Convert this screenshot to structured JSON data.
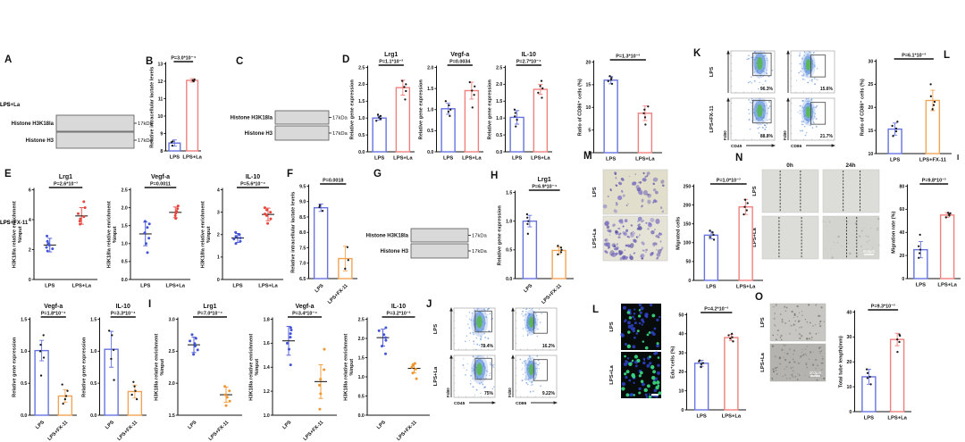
{
  "figure": {
    "panel_labels": [
      {
        "id": "A",
        "label": "A"
      },
      {
        "id": "B",
        "label": "B"
      },
      {
        "id": "C",
        "label": "C"
      },
      {
        "id": "D",
        "label": "D"
      },
      {
        "id": "E",
        "label": "E"
      },
      {
        "id": "F",
        "label": "F"
      },
      {
        "id": "G",
        "label": "G"
      },
      {
        "id": "H",
        "label": "H"
      },
      {
        "id": "I",
        "label": "I"
      },
      {
        "id": "J",
        "label": "J"
      },
      {
        "id": "K",
        "label": "K"
      },
      {
        "id": "L2",
        "label": "L"
      },
      {
        "id": "M",
        "label": "M"
      },
      {
        "id": "N",
        "label": "N"
      },
      {
        "id": "L",
        "label": "L"
      },
      {
        "id": "O",
        "label": "O"
      },
      {
        "id": "Imark",
        "label": "I"
      }
    ]
  },
  "colors": {
    "blue": "#6673e0",
    "red": "#f0807e",
    "orange": "#f2a455",
    "dot_blue": "#4353d6",
    "dot_red": "#e8443b",
    "dot_orange": "#f0942d",
    "bar_dot": "#1a1a1a",
    "flow_blue": "#4e86d6",
    "flow_green": "#58b657"
  },
  "blots": [
    {
      "id": "A",
      "lane_labels": [],
      "rows": [
        {
          "label": "Histone H3K18la",
          "marker": "17kDa",
          "bands": [
            0.5,
            0.75,
            0.95,
            0.85
          ]
        },
        {
          "label": "Histone H3",
          "marker": "17kDa",
          "bands": [
            0.95,
            0.9,
            0.92,
            0.95
          ]
        }
      ]
    },
    {
      "id": "C",
      "lane_labels": [
        "LPS",
        "LPS+La"
      ],
      "rows": [
        {
          "label": "Histone H3K18la",
          "marker": "17kDa",
          "bands": [
            0.55,
            0.97
          ]
        },
        {
          "label": "Histone H3",
          "marker": "17kDa",
          "bands": [
            0.92,
            0.9
          ]
        }
      ]
    },
    {
      "id": "G",
      "lane_labels": [
        "LPS",
        "LPS+FX-11"
      ],
      "rows": [
        {
          "label": "Histone H3K18la",
          "marker": "17kDa",
          "bands": [
            0.97,
            0.68
          ]
        },
        {
          "label": "Histone H3",
          "marker": "17kDa",
          "bands": [
            0.75,
            0.95
          ]
        }
      ]
    }
  ],
  "flow_panels": [
    {
      "id": "K",
      "row_labels": [
        "LPS",
        "LPS+FX-11"
      ],
      "ylabel": "F4/80",
      "cols": [
        {
          "xlabel": "CD45",
          "percentages": [
            "96.3%",
            "88.8%"
          ]
        },
        {
          "xlabel": "CD86",
          "percentages": [
            "15.6%",
            "21.7%"
          ]
        }
      ]
    },
    {
      "id": "J",
      "row_labels": [
        "LPS",
        "LPS+La"
      ],
      "ylabel": "F4/80",
      "cols": [
        {
          "xlabel": "CD45",
          "percentages": [
            "79.4%",
            "75%"
          ]
        },
        {
          "xlabel": "CD86",
          "percentages": [
            "16.2%",
            "9.22%"
          ]
        }
      ]
    }
  ],
  "images": {
    "M": {
      "type": "transwell",
      "row_labels": [
        "LPS",
        "LPS+La"
      ]
    },
    "N": {
      "type": "wound",
      "row_labels": [
        "LPS",
        "LPS+La"
      ],
      "col_labels": [
        "0h",
        "24h"
      ],
      "scale_bar": "500μm"
    },
    "L": {
      "type": "edu",
      "row_labels": [
        "LPS",
        "LPS+La"
      ]
    },
    "O": {
      "type": "tube",
      "row_labels": [
        "LPS",
        "LPS+La"
      ],
      "scale_bar": "200μm"
    }
  },
  "chart_data": [
    {
      "id": "B",
      "type": "bar",
      "title": "",
      "p": "P=3.0*10⁻⁴",
      "ylabel": [
        "Relative intracellular lactate levels"
      ],
      "ymin": 8,
      "ymax": 13,
      "ystep": 1,
      "categories": [
        "LPS",
        "LPS+La"
      ],
      "colors": [
        "blue",
        "red"
      ],
      "values": [
        8.45,
        12.05
      ],
      "errors": [
        0.18,
        0.1
      ],
      "points": [
        [
          8.3,
          8.5,
          8.55
        ],
        [
          12.0,
          12.05,
          12.1
        ]
      ],
      "x_rotated": false
    },
    {
      "id": "D1",
      "type": "bar",
      "title": "Lrg1",
      "p": "P=1.1*10⁻³",
      "ylabel": [
        "Relative gene expression"
      ],
      "ymin": 0,
      "ymax": 2.5,
      "ystep": 0.5,
      "categories": [
        "LPS",
        "LPS+La"
      ],
      "colors": [
        "blue",
        "red"
      ],
      "values": [
        1.0,
        1.9
      ],
      "errors": [
        0.06,
        0.22
      ],
      "points": [
        [
          0.92,
          0.98,
          1.02,
          1.06,
          1.1
        ],
        [
          1.55,
          1.8,
          1.92,
          2.0,
          2.1
        ]
      ],
      "x_rotated": false
    },
    {
      "id": "D2",
      "type": "bar",
      "title": "Vegf-a",
      "p": "P=0.0034",
      "ylabel": [
        "Relative gene expression"
      ],
      "ymin": 0,
      "ymax": 2.0,
      "ystep": 0.5,
      "categories": [
        "LPS",
        "LPS+La"
      ],
      "colors": [
        "blue",
        "red"
      ],
      "values": [
        1.02,
        1.45
      ],
      "errors": [
        0.13,
        0.2
      ],
      "points": [
        [
          0.85,
          0.95,
          1.0,
          1.1,
          1.2
        ],
        [
          1.05,
          1.35,
          1.45,
          1.55,
          1.65
        ]
      ],
      "x_rotated": false
    },
    {
      "id": "D3",
      "type": "bar",
      "title": "IL-10",
      "p": "P=2.7*10⁻⁴",
      "ylabel": [
        "Relative gene expression"
      ],
      "ymin": 0,
      "ymax": 2.5,
      "ystep": 0.5,
      "categories": [
        "LPS",
        "LPS+La"
      ],
      "colors": [
        "blue",
        "red"
      ],
      "values": [
        1.02,
        1.85
      ],
      "errors": [
        0.2,
        0.15
      ],
      "points": [
        [
          0.75,
          0.95,
          1.05,
          1.15,
          1.25
        ],
        [
          1.6,
          1.75,
          1.88,
          1.95,
          2.1
        ]
      ],
      "x_rotated": false
    },
    {
      "id": "CD86La",
      "type": "bar",
      "title": "",
      "p": "P=1.3*10⁻³",
      "ylabel": [
        "Ratio of CD86⁺ cells (%)"
      ],
      "ymin": 0,
      "ymax": 20,
      "ystep": 5,
      "categories": [
        "LPS",
        "LPS+La"
      ],
      "colors": [
        "blue",
        "red"
      ],
      "values": [
        16,
        8.7
      ],
      "errors": [
        0.8,
        1.6
      ],
      "points": [
        [
          15.2,
          15.8,
          16.1,
          16.5,
          16.9
        ],
        [
          6.2,
          7.8,
          8.7,
          9.5,
          10.2
        ]
      ],
      "x_rotated": false
    },
    {
      "id": "Kbar",
      "type": "bar",
      "title": "",
      "p": "P=6.1*10⁻³",
      "ylabel": [
        "Ratio of CD86⁺ cells (%)"
      ],
      "ymin": 10,
      "ymax": 30,
      "ystep": 5,
      "categories": [
        "LPS",
        "LPS+FX-11"
      ],
      "colors": [
        "blue",
        "orange"
      ],
      "values": [
        15.3,
        21.5
      ],
      "errors": [
        1.3,
        2.2
      ],
      "points": [
        [
          13.8,
          14.8,
          15.4,
          16.0,
          16.9
        ],
        [
          19.6,
          20.5,
          21.2,
          22.4,
          25.0
        ]
      ],
      "x_rotated": false
    },
    {
      "id": "E1",
      "type": "dot",
      "title": "Lrg1",
      "p": "P=2.6*10⁻³",
      "ylabel": [
        "H3K18la relative enrichment",
        "%input"
      ],
      "ymin": 0,
      "ymax": 6,
      "ystep": 2,
      "categories": [
        "LPS",
        "LPS+La"
      ],
      "colors": [
        "dot_blue",
        "dot_red"
      ],
      "values": [
        2.3,
        4.25
      ],
      "errors": [
        0.45,
        0.55
      ],
      "points": [
        [
          1.9,
          2.05,
          2.15,
          2.3,
          2.4,
          2.55,
          2.9
        ],
        [
          3.7,
          3.9,
          4.05,
          4.2,
          4.4,
          4.8,
          5.2
        ]
      ],
      "x_rotated": false
    },
    {
      "id": "E2",
      "type": "dot",
      "title": "Vegf-a",
      "p": "P=0.0011",
      "ylabel": [
        "H3K18la relative enrichment",
        "%input"
      ],
      "ymin": 0,
      "ymax": 2.5,
      "ystep": 0.5,
      "categories": [
        "LPS",
        "LPS+La"
      ],
      "colors": [
        "dot_blue",
        "dot_red"
      ],
      "values": [
        1.27,
        1.87
      ],
      "errors": [
        0.33,
        0.15
      ],
      "points": [
        [
          0.75,
          1.0,
          1.15,
          1.3,
          1.45,
          1.55,
          1.62
        ],
        [
          1.7,
          1.78,
          1.85,
          1.9,
          1.97,
          2.05
        ]
      ],
      "x_rotated": false
    },
    {
      "id": "E3",
      "type": "dot",
      "title": "IL-10",
      "p": "P=5.6*10⁻⁴",
      "ylabel": [
        "H3K18la relative enrichment",
        "%input"
      ],
      "ymin": 0,
      "ymax": 4,
      "ystep": 1,
      "categories": [
        "LPS",
        "LPS+La"
      ],
      "colors": [
        "dot_blue",
        "dot_red"
      ],
      "values": [
        1.85,
        2.9
      ],
      "errors": [
        0.2,
        0.28
      ],
      "points": [
        [
          1.6,
          1.7,
          1.8,
          1.85,
          1.92,
          2.0,
          2.1
        ],
        [
          2.5,
          2.7,
          2.85,
          2.92,
          3.0,
          3.1,
          3.2
        ]
      ],
      "x_rotated": false
    },
    {
      "id": "F",
      "type": "bar",
      "title": "",
      "p": "P=0.0018",
      "ylabel": [
        "Relative intracellular lactate levels"
      ],
      "ymin": 6.5,
      "ymax": 9.5,
      "ystep": 0.5,
      "categories": [
        "LPS",
        "LPS+FX-11"
      ],
      "colors": [
        "blue",
        "orange"
      ],
      "values": [
        8.8,
        7.15
      ],
      "errors": [
        0.12,
        0.4
      ],
      "points": [
        [
          8.7,
          8.82,
          8.88
        ],
        [
          6.82,
          7.1,
          7.52
        ]
      ],
      "x_rotated": true
    },
    {
      "id": "H",
      "type": "bar",
      "title": "Lrg1",
      "p": "P=6.9*10⁻⁴",
      "ylabel": [
        "Relative gene expression"
      ],
      "ymin": 0,
      "ymax": 1.5,
      "ystep": 0.5,
      "categories": [
        "LPS",
        "LPS+FX-11"
      ],
      "colors": [
        "blue",
        "orange"
      ],
      "values": [
        1.0,
        0.49
      ],
      "errors": [
        0.1,
        0.06
      ],
      "points": [
        [
          0.78,
          0.95,
          1.0,
          1.06,
          1.12
        ],
        [
          0.42,
          0.46,
          0.5,
          0.54,
          0.57
        ]
      ],
      "x_rotated": true
    },
    {
      "id": "Mbar",
      "type": "bar",
      "title": "",
      "p": "P=1.0*10⁻³",
      "ylabel": [
        "Migrated cells"
      ],
      "ymin": 0,
      "ymax": 250,
      "ystep": 50,
      "categories": [
        "LPS",
        "LPS+La"
      ],
      "colors": [
        "blue",
        "red"
      ],
      "values": [
        120,
        195
      ],
      "errors": [
        10,
        20
      ],
      "points": [
        [
          108,
          115,
          121,
          127,
          132
        ],
        [
          175,
          186,
          195,
          205,
          214
        ]
      ],
      "x_rotated": false
    },
    {
      "id": "Nbar",
      "type": "bar",
      "title": "",
      "p": "P=9.8*10⁻³",
      "ylabel": [
        "Migration rate (%)"
      ],
      "ymin": 0,
      "ymax": 80,
      "ystep": 20,
      "categories": [
        "LPS",
        "LPS+La"
      ],
      "colors": [
        "blue",
        "red"
      ],
      "values": [
        25,
        55
      ],
      "errors": [
        7,
        2
      ],
      "points": [
        [
          18,
          22,
          25,
          28,
          38
        ],
        [
          53,
          54.5,
          55.5,
          56.5,
          57
        ]
      ],
      "x_rotated": false
    },
    {
      "id": "R3V",
      "type": "bar",
      "title": "Vegf-a",
      "p": "P=1.8*10⁻⁴",
      "ylabel": [
        "Relative gene expression"
      ],
      "ymin": 0,
      "ymax": 1.5,
      "ystep": 0.5,
      "categories": [
        "LPS",
        "LPS+FX-11"
      ],
      "colors": [
        "blue",
        "orange"
      ],
      "values": [
        1.01,
        0.3
      ],
      "errors": [
        0.16,
        0.1
      ],
      "points": [
        [
          0.62,
          0.9,
          1.0,
          1.1,
          1.25
        ],
        [
          0.18,
          0.25,
          0.3,
          0.38,
          0.48
        ]
      ],
      "x_rotated": true
    },
    {
      "id": "R3I",
      "type": "bar",
      "title": "IL-10",
      "p": "P=3.3*10⁻⁴",
      "ylabel": [
        "Relative gene expression"
      ],
      "ymin": 0,
      "ymax": 1.5,
      "ystep": 0.5,
      "categories": [
        "LPS",
        "LPS+FX-11"
      ],
      "colors": [
        "blue",
        "orange"
      ],
      "values": [
        1.03,
        0.37
      ],
      "errors": [
        0.28,
        0.1
      ],
      "points": [
        [
          0.55,
          0.88,
          1.02,
          1.25,
          1.32
        ],
        [
          0.25,
          0.32,
          0.38,
          0.45,
          0.52
        ]
      ],
      "x_rotated": true
    },
    {
      "id": "I1",
      "type": "dot",
      "title": "Lrg1",
      "p": "P=7.0*10⁻⁴",
      "ylabel": [
        "H3K18la relative enrichment",
        "%input"
      ],
      "ymin": 1.5,
      "ymax": 3.0,
      "ystep": 0.5,
      "categories": [
        "LPS",
        "LPS+FX-11"
      ],
      "colors": [
        "dot_blue",
        "dot_orange"
      ],
      "values": [
        2.6,
        1.82
      ],
      "errors": [
        0.12,
        0.12
      ],
      "points": [
        [
          2.45,
          2.52,
          2.58,
          2.62,
          2.66,
          2.7,
          2.76
        ],
        [
          1.65,
          1.72,
          1.78,
          1.82,
          1.88,
          1.95
        ]
      ],
      "x_rotated": true
    },
    {
      "id": "I2",
      "type": "dot",
      "title": "Vegf-a",
      "p": "P=3.4*10⁻⁴",
      "ylabel": [
        "H3K18la relative enrichment",
        "%input"
      ],
      "ymin": 1.0,
      "ymax": 1.8,
      "ystep": 0.2,
      "categories": [
        "LPS",
        "LPS+FX-11"
      ],
      "colors": [
        "dot_blue",
        "dot_orange"
      ],
      "values": [
        1.62,
        1.28
      ],
      "errors": [
        0.12,
        0.14
      ],
      "points": [
        [
          1.42,
          1.55,
          1.6,
          1.65,
          1.68,
          1.71,
          1.73
        ],
        [
          1.05,
          1.18,
          1.25,
          1.3,
          1.38,
          1.55
        ]
      ],
      "x_rotated": true
    },
    {
      "id": "I3",
      "type": "dot",
      "title": "IL-10",
      "p": "P=3.2*10⁻²",
      "ylabel": [
        "H3K18la relative enrichment",
        "%input"
      ],
      "ymin": 0,
      "ymax": 2.5,
      "ystep": 0.5,
      "categories": [
        "LPS",
        "LPS+FX-11"
      ],
      "colors": [
        "dot_blue",
        "dot_orange"
      ],
      "values": [
        2.02,
        1.22
      ],
      "errors": [
        0.22,
        0.12
      ],
      "points": [
        [
          1.6,
          1.8,
          1.95,
          2.02,
          2.1,
          2.2,
          2.28
        ],
        [
          0.95,
          1.1,
          1.2,
          1.25,
          1.3,
          1.35
        ]
      ],
      "x_rotated": true
    },
    {
      "id": "Lbar",
      "type": "bar",
      "title": "",
      "p": "P=4.2*10⁻³",
      "ylabel": [
        "Edu⁺cells (%)"
      ],
      "ymin": 0,
      "ymax": 50,
      "ystep": 10,
      "categories": [
        "LPS",
        "LPS+La"
      ],
      "colors": [
        "blue",
        "red"
      ],
      "values": [
        24.5,
        38
      ],
      "errors": [
        1.6,
        1.6
      ],
      "points": [
        [
          22.5,
          24,
          24.6,
          25.5,
          26
        ],
        [
          36,
          37.5,
          38.2,
          39.2,
          40
        ]
      ],
      "x_rotated": false
    },
    {
      "id": "Obar",
      "type": "bar",
      "title": "",
      "p": "P=9.3*10⁻³",
      "ylabel": [
        "Total tube length(mm)"
      ],
      "ymin": 0,
      "ymax": 40,
      "ystep": 10,
      "categories": [
        "LPS",
        "LPS+La"
      ],
      "colors": [
        "blue",
        "red"
      ],
      "values": [
        14,
        29
      ],
      "errors": [
        3,
        2.5
      ],
      "points": [
        [
          11,
          13.5,
          14,
          15.5,
          17
        ],
        [
          24,
          28,
          29,
          30.5,
          31
        ]
      ],
      "x_rotated": false
    }
  ]
}
